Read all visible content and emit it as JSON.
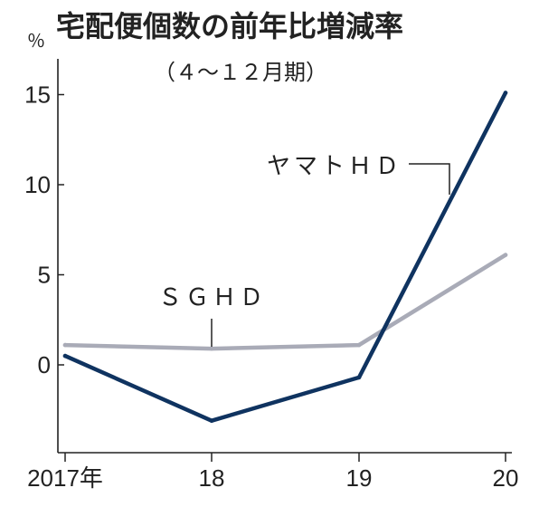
{
  "chart_data": {
    "type": "line",
    "title": "宅配便個数の前年比増減率",
    "subtitle": "（４～１２月期）",
    "unit": "％",
    "x": [
      "2017年",
      "18",
      "19",
      "20"
    ],
    "ylim": [
      -5,
      15
    ],
    "yticks": [
      0,
      5,
      10,
      15
    ],
    "grid": false,
    "series": [
      {
        "name": "ヤマトＨＤ",
        "color": "#0f3360",
        "values": [
          0.5,
          -3.1,
          -0.7,
          15.1
        ]
      },
      {
        "name": "ＳＧＨＤ",
        "color": "#a9abb7",
        "values": [
          1.1,
          0.9,
          1.1,
          6.1
        ]
      }
    ]
  }
}
